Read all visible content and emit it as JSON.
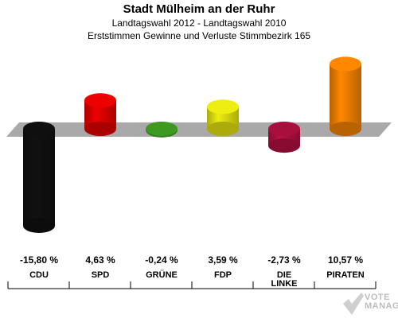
{
  "header": {
    "title": "Stadt Mülheim an der Ruhr",
    "subtitle": "Landtagswahl 2012 - Landtagswahl 2010",
    "description": "Erststimmen Gewinne und Verluste Stimmbezirk 165"
  },
  "watermark": {
    "line1": "VOTE",
    "line2": "MANAGER"
  },
  "chart_data": {
    "type": "bar",
    "title": "Stadt Mülheim an der Ruhr",
    "subtitle": "Landtagswahl 2012 - Landtagswahl 2010",
    "xlabel": "",
    "ylabel": "",
    "ylim": [
      -15.8,
      10.57
    ],
    "grid": false,
    "categories": [
      "CDU",
      "SPD",
      "GRÜNE",
      "FDP",
      "DIE LINKE",
      "PIRATEN"
    ],
    "category_labels": [
      [
        "CDU"
      ],
      [
        "SPD"
      ],
      [
        "GRÜNE"
      ],
      [
        "FDP"
      ],
      [
        "DIE",
        "LINKE"
      ],
      [
        "PIRATEN"
      ]
    ],
    "values": [
      -15.8,
      4.63,
      -0.24,
      3.59,
      -2.73,
      10.57
    ],
    "value_labels": [
      "-15,80 %",
      "4,63 %",
      "-0,24 %",
      "3,59 %",
      "-2,73 %",
      "10,57 %"
    ],
    "colors": [
      "#111111",
      "#ee0000",
      "#44aa22",
      "#eeee11",
      "#bb1144",
      "#ff8800"
    ]
  }
}
